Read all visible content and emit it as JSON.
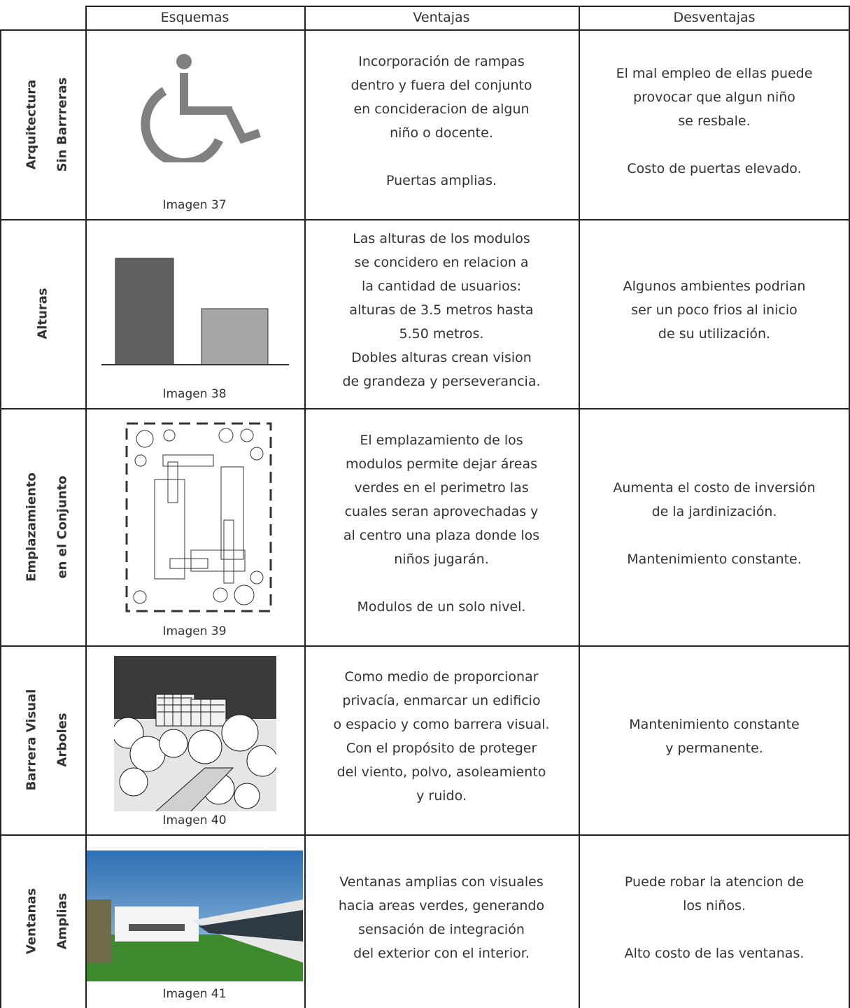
{
  "header": {
    "columns": [
      "Esquemas",
      "Ventajas",
      "Desventajas"
    ]
  },
  "rows": [
    {
      "label": [
        "Arquitectura",
        "Sin Barrreras"
      ],
      "caption": "Imagen 37",
      "ventajas": [
        [
          "Incorporación de rampas",
          "dentro y fuera del conjunto",
          "en concideracion de algun",
          "niño o docente."
        ],
        [
          "Puertas amplias."
        ]
      ],
      "desventajas": [
        [
          "El mal empleo de ellas puede",
          "provocar que algun niño",
          "se resbale."
        ],
        [
          "Costo de puertas elevado."
        ]
      ]
    },
    {
      "label": [
        "Alturas"
      ],
      "caption": "Imagen 38",
      "ventajas": [
        [
          "Las alturas de los modulos",
          "se concidero en relacion a",
          "la cantidad de usuarios:",
          "alturas de 3.5 metros hasta",
          "5.50 metros.",
          "Dobles alturas crean vision",
          "de grandeza y perseverancia."
        ]
      ],
      "desventajas": [
        [
          "Algunos ambientes podrian",
          "ser un poco frios al inicio",
          "de su utilización."
        ]
      ]
    },
    {
      "label": [
        "Emplazamiento",
        "en el Conjunto"
      ],
      "caption": "Imagen 39",
      "ventajas": [
        [
          "El emplazamiento de los",
          "modulos permite dejar áreas",
          "verdes en el perimetro las",
          "cuales seran aprovechadas y",
          "al centro una plaza donde los",
          "niños jugarán."
        ],
        [
          "Modulos de un solo nivel."
        ]
      ],
      "desventajas": [
        [
          "Aumenta el costo de inversión",
          "de la jardinización."
        ],
        [
          "Mantenimiento constante."
        ]
      ]
    },
    {
      "label": [
        "Barrera Visual",
        "Arboles"
      ],
      "caption": "Imagen 40",
      "ventajas": [
        [
          "Como medio de proporcionar",
          "privacía, enmarcar un edificio",
          "o espacio y como barrera visual.",
          "Con el propósito de proteger",
          "del viento, polvo, asoleamiento",
          "y ruido."
        ]
      ],
      "desventajas": [
        [
          "Mantenimiento constante",
          "y permanente."
        ]
      ]
    },
    {
      "label": [
        "Ventanas",
        "Amplias"
      ],
      "caption": "Imagen 41",
      "ventajas": [
        [
          "Ventanas amplias con visuales",
          "hacia areas verdes, generando",
          "sensación de integración",
          "del exterior con el interior."
        ]
      ],
      "desventajas": [
        [
          "Puede robar la atencion de",
          "los niños."
        ],
        [
          "Alto costo de las ventanas."
        ]
      ]
    }
  ]
}
